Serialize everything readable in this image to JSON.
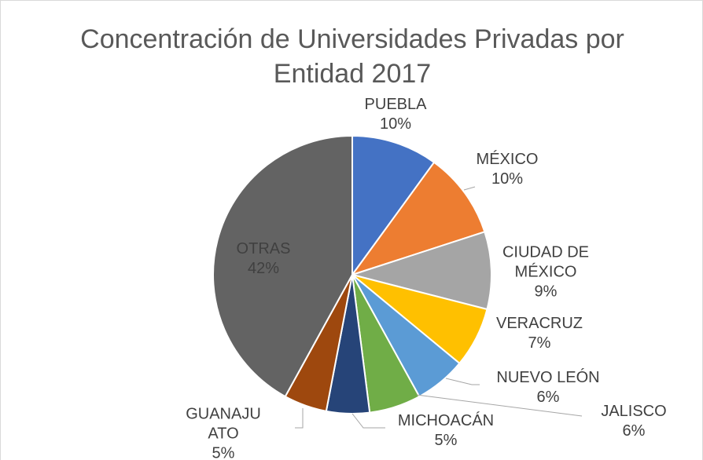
{
  "chart_data": {
    "type": "pie",
    "title": "Concentración de Universidades Privadas por Entidad 2017",
    "categories": [
      "PUEBLA",
      "MÉXICO",
      "CIUDAD DE MÉXICO",
      "VERACRUZ",
      "NUEVO LEÓN",
      "JALISCO",
      "MICHOACÁN",
      "GUANAJUATO",
      "OTRAS"
    ],
    "values": [
      10,
      10,
      9,
      7,
      6,
      6,
      5,
      5,
      42
    ],
    "value_labels": [
      "10%",
      "10%",
      "9%",
      "7%",
      "6%",
      "6%",
      "5%",
      "5%",
      "42%"
    ],
    "colors": [
      "#4472c4",
      "#ed7d31",
      "#a5a5a5",
      "#ffc000",
      "#5b9bd5",
      "#70ad47",
      "#264478",
      "#9e480e",
      "#636363"
    ]
  }
}
